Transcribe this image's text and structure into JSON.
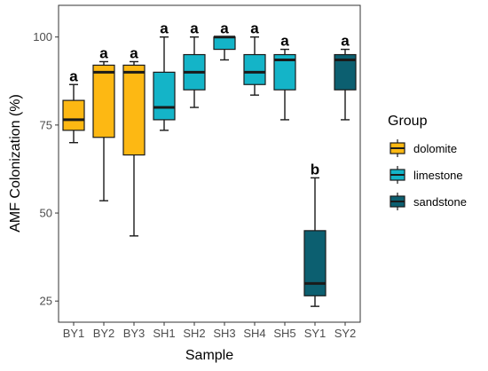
{
  "chart_data": {
    "type": "boxplot",
    "xlabel": "Sample",
    "ylabel": "AMF Colonization (%)",
    "ylim": [
      19,
      109
    ],
    "yticks": [
      25,
      50,
      75,
      100
    ],
    "grid": false,
    "legend_placement": "right",
    "legend": {
      "title": "Group",
      "entries": [
        {
          "label": "dolomite",
          "color": "#FDB813"
        },
        {
          "label": "limestone",
          "color": "#14B4C8"
        },
        {
          "label": "sandstone",
          "color": "#0C5F70"
        }
      ]
    },
    "boxes": [
      {
        "category": "BY1",
        "group": "dolomite",
        "min": 70,
        "q1": 73.5,
        "median": 76.5,
        "q3": 82,
        "max": 86.5,
        "label": "a"
      },
      {
        "category": "BY2",
        "group": "dolomite",
        "min": 53.5,
        "q1": 71.5,
        "median": 90,
        "q3": 92,
        "max": 93,
        "label": "a"
      },
      {
        "category": "BY3",
        "group": "dolomite",
        "min": 43.5,
        "q1": 66.5,
        "median": 90,
        "q3": 92,
        "max": 93,
        "label": "a"
      },
      {
        "category": "SH1",
        "group": "limestone",
        "min": 73.5,
        "q1": 76.5,
        "median": 80,
        "q3": 90,
        "max": 100,
        "label": "a"
      },
      {
        "category": "SH2",
        "group": "limestone",
        "min": 80,
        "q1": 85,
        "median": 90,
        "q3": 95,
        "max": 100,
        "label": "a"
      },
      {
        "category": "SH3",
        "group": "limestone",
        "min": 93.5,
        "q1": 96.5,
        "median": 100,
        "q3": 100,
        "max": 100,
        "label": "a"
      },
      {
        "category": "SH4",
        "group": "limestone",
        "min": 83.5,
        "q1": 86.5,
        "median": 90,
        "q3": 95,
        "max": 100,
        "label": "a"
      },
      {
        "category": "SH5",
        "group": "limestone",
        "min": 76.5,
        "q1": 85,
        "median": 93.5,
        "q3": 95,
        "max": 96.5,
        "label": "a"
      },
      {
        "category": "SY1",
        "group": "sandstone",
        "min": 23.5,
        "q1": 26.5,
        "median": 30,
        "q3": 45,
        "max": 60,
        "label": "b"
      },
      {
        "category": "SY2",
        "group": "sandstone",
        "min": 76.5,
        "q1": 85,
        "median": 93.5,
        "q3": 95,
        "max": 96.5,
        "label": "a"
      }
    ]
  }
}
